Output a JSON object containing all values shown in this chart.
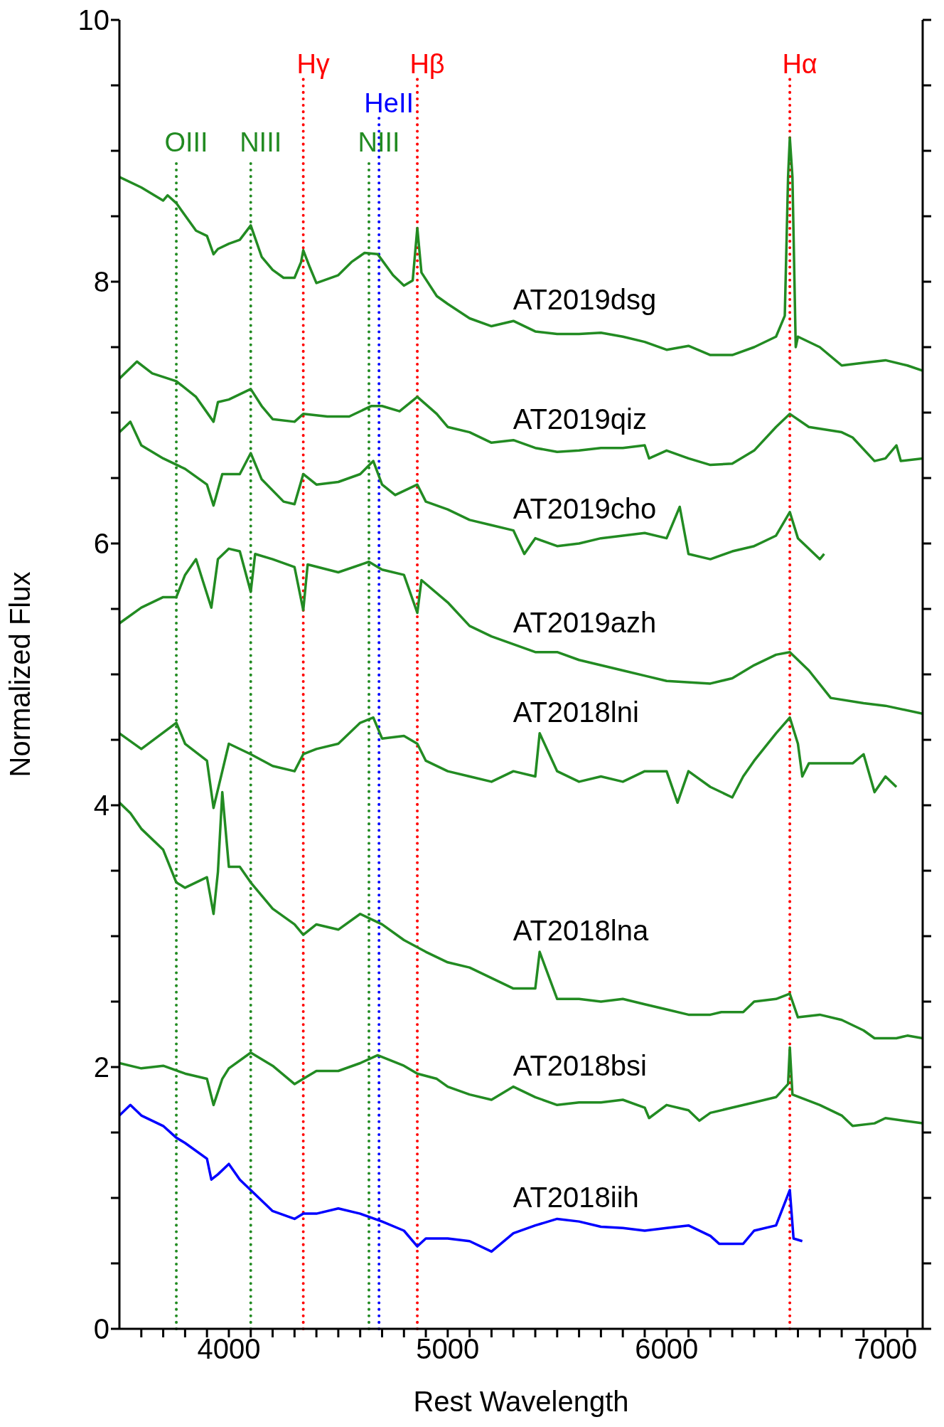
{
  "chart_data": {
    "type": "line",
    "xlabel": "Rest Wavelength",
    "ylabel": "Normalized Flux",
    "xlim": [
      3500,
      7170
    ],
    "ylim": [
      0,
      10
    ],
    "xticks": [
      {
        "value": 3600,
        "label": null
      },
      {
        "value": 3700,
        "label": null
      },
      {
        "value": 3800,
        "label": null
      },
      {
        "value": 3900,
        "label": null
      },
      4000,
      {
        "value": 4100,
        "label": null
      },
      {
        "value": 4200,
        "label": null
      },
      {
        "value": 4300,
        "label": null
      },
      {
        "value": 4400,
        "label": null
      },
      {
        "value": 4500,
        "label": null
      },
      {
        "value": 4600,
        "label": null
      },
      {
        "value": 4700,
        "label": null
      },
      {
        "value": 4800,
        "label": null
      },
      {
        "value": 4900,
        "label": null
      },
      5000,
      {
        "value": 5100,
        "label": null
      },
      {
        "value": 5200,
        "label": null
      },
      {
        "value": 5300,
        "label": null
      },
      {
        "value": 5400,
        "label": null
      },
      {
        "value": 5500,
        "label": null
      },
      {
        "value": 5600,
        "label": null
      },
      {
        "value": 5700,
        "label": null
      },
      {
        "value": 5800,
        "label": null
      },
      {
        "value": 5900,
        "label": null
      },
      6000,
      {
        "value": 6100,
        "label": null
      },
      {
        "value": 6200,
        "label": null
      },
      {
        "value": 6300,
        "label": null
      },
      {
        "value": 6400,
        "label": null
      },
      {
        "value": 6500,
        "label": null
      },
      {
        "value": 6600,
        "label": null
      },
      {
        "value": 6700,
        "label": null
      },
      {
        "value": 6800,
        "label": null
      },
      {
        "value": 6900,
        "label": null
      },
      7000,
      {
        "value": 7100,
        "label": null
      }
    ],
    "yticks": [
      0,
      {
        "value": 0.5,
        "label": null
      },
      {
        "value": 1,
        "label": null
      },
      {
        "value": 1.5,
        "label": null
      },
      2,
      {
        "value": 2.5,
        "label": null
      },
      {
        "value": 3,
        "label": null
      },
      {
        "value": 3.5,
        "label": null
      },
      4,
      {
        "value": 4.5,
        "label": null
      },
      {
        "value": 5,
        "label": null
      },
      {
        "value": 5.5,
        "label": null
      },
      6,
      {
        "value": 6.5,
        "label": null
      },
      {
        "value": 7,
        "label": null
      },
      {
        "value": 7.5,
        "label": null
      },
      8,
      {
        "value": 8.5,
        "label": null
      },
      {
        "value": 9,
        "label": null
      },
      {
        "value": 9.5,
        "label": null
      },
      10
    ],
    "ref_lines": [
      {
        "axis": "x",
        "value": 4340,
        "label": "Hγ",
        "color": "#ff0000",
        "line_style": "dotted"
      },
      {
        "axis": "x",
        "value": 4861,
        "label": "Hβ",
        "color": "#ff0000",
        "line_style": "dotted"
      },
      {
        "axis": "x",
        "value": 6563,
        "label": "Hα",
        "color": "#ff0000",
        "line_style": "dotted"
      },
      {
        "axis": "x",
        "value": 4686,
        "label": "HeII",
        "color": "#0000ff",
        "line_style": "dotted"
      },
      {
        "axis": "x",
        "value": 3760,
        "label": "OIII",
        "color": "#228b22",
        "line_style": "dotted"
      },
      {
        "axis": "x",
        "value": 4100,
        "label": "NIII",
        "color": "#228b22",
        "line_style": "dotted"
      },
      {
        "axis": "x",
        "value": 4640,
        "label": "NIII",
        "color": "#228b22",
        "line_style": "dotted"
      }
    ],
    "series": [
      {
        "name": "AT2019dsg",
        "color": "#228b22",
        "x": [
          3500,
          3600,
          3700,
          3720,
          3760,
          3850,
          3900,
          3930,
          3950,
          4000,
          4050,
          4100,
          4150,
          4200,
          4250,
          4300,
          4330,
          4340,
          4370,
          4400,
          4450,
          4500,
          4560,
          4620,
          4680,
          4750,
          4800,
          4840,
          4861,
          4880,
          4950,
          5000,
          5100,
          5200,
          5300,
          5400,
          5500,
          5600,
          5700,
          5800,
          5900,
          6000,
          6100,
          6200,
          6300,
          6400,
          6500,
          6540,
          6555,
          6563,
          6575,
          6590,
          6600,
          6700,
          6800,
          6900,
          7000,
          7100,
          7170
        ],
        "values": [
          8.8,
          8.72,
          8.62,
          8.66,
          8.6,
          8.39,
          8.35,
          8.21,
          8.25,
          8.29,
          8.32,
          8.43,
          8.19,
          8.09,
          8.03,
          8.03,
          8.15,
          8.24,
          8.11,
          7.99,
          8.02,
          8.05,
          8.15,
          8.22,
          8.21,
          8.05,
          7.97,
          8.01,
          8.41,
          8.07,
          7.89,
          7.83,
          7.72,
          7.66,
          7.7,
          7.62,
          7.6,
          7.6,
          7.61,
          7.58,
          7.54,
          7.48,
          7.51,
          7.44,
          7.44,
          7.5,
          7.58,
          7.74,
          8.8,
          9.1,
          8.8,
          7.5,
          7.58,
          7.5,
          7.36,
          7.38,
          7.4,
          7.36,
          7.32
        ]
      },
      {
        "name": "AT2019qiz",
        "color": "#228b22",
        "x": [
          3500,
          3580,
          3650,
          3760,
          3850,
          3930,
          3950,
          4000,
          4100,
          4150,
          4200,
          4300,
          4340,
          4450,
          4550,
          4650,
          4700,
          4780,
          4861,
          4950,
          5000,
          5100,
          5200,
          5300,
          5400,
          5500,
          5600,
          5700,
          5800,
          5900,
          5920,
          6000,
          6100,
          6200,
          6300,
          6400,
          6500,
          6563,
          6650,
          6800,
          6850,
          6950,
          7000,
          7050,
          7070,
          7170
        ],
        "values": [
          7.26,
          7.39,
          7.3,
          7.24,
          7.12,
          6.93,
          7.08,
          7.1,
          7.18,
          7.05,
          6.95,
          6.93,
          6.99,
          6.97,
          6.97,
          7.05,
          7.05,
          7.01,
          7.12,
          6.99,
          6.89,
          6.85,
          6.77,
          6.79,
          6.73,
          6.7,
          6.71,
          6.73,
          6.73,
          6.75,
          6.65,
          6.71,
          6.65,
          6.6,
          6.61,
          6.71,
          6.89,
          6.99,
          6.89,
          6.85,
          6.81,
          6.63,
          6.65,
          6.75,
          6.63,
          6.65
        ]
      },
      {
        "name": "AT2019cho",
        "color": "#228b22",
        "x": [
          3500,
          3550,
          3600,
          3700,
          3800,
          3900,
          3930,
          3970,
          4050,
          4100,
          4150,
          4250,
          4300,
          4340,
          4400,
          4500,
          4600,
          4660,
          4700,
          4760,
          4861,
          4900,
          5000,
          5100,
          5200,
          5300,
          5350,
          5400,
          5500,
          5600,
          5700,
          5800,
          5900,
          6000,
          6060,
          6100,
          6200,
          6300,
          6400,
          6500,
          6563,
          6600,
          6700,
          6720
        ],
        "values": [
          6.85,
          6.93,
          6.75,
          6.65,
          6.57,
          6.45,
          6.29,
          6.53,
          6.53,
          6.69,
          6.49,
          6.32,
          6.3,
          6.53,
          6.45,
          6.47,
          6.53,
          6.63,
          6.45,
          6.37,
          6.45,
          6.32,
          6.26,
          6.18,
          6.14,
          6.1,
          5.92,
          6.04,
          5.98,
          6.0,
          6.04,
          6.06,
          6.08,
          6.04,
          6.28,
          5.92,
          5.88,
          5.94,
          5.98,
          6.06,
          6.24,
          6.04,
          5.88,
          5.92
        ]
      },
      {
        "name": "AT2019azh",
        "color": "#228b22",
        "x": [
          3500,
          3600,
          3700,
          3760,
          3800,
          3850,
          3880,
          3920,
          3950,
          4000,
          4050,
          4100,
          4120,
          4200,
          4300,
          4340,
          4360,
          4500,
          4640,
          4700,
          4800,
          4861,
          4880,
          5000,
          5100,
          5200,
          5300,
          5400,
          5500,
          5600,
          5800,
          5900,
          6000,
          6200,
          6300,
          6400,
          6500,
          6563,
          6650,
          6750,
          6900,
          7000,
          7170
        ],
        "values": [
          5.39,
          5.51,
          5.59,
          5.59,
          5.76,
          5.88,
          5.72,
          5.51,
          5.88,
          5.96,
          5.94,
          5.63,
          5.92,
          5.88,
          5.82,
          5.49,
          5.84,
          5.78,
          5.86,
          5.8,
          5.76,
          5.47,
          5.72,
          5.55,
          5.37,
          5.29,
          5.23,
          5.17,
          5.17,
          5.11,
          5.03,
          4.99,
          4.95,
          4.93,
          4.97,
          5.07,
          5.15,
          5.17,
          5.03,
          4.82,
          4.78,
          4.76,
          4.7
        ]
      },
      {
        "name": "AT2018lni",
        "color": "#228b22",
        "x": [
          3500,
          3600,
          3760,
          3800,
          3900,
          3930,
          4000,
          4100,
          4200,
          4300,
          4340,
          4400,
          4500,
          4600,
          4660,
          4700,
          4800,
          4861,
          4900,
          5000,
          5100,
          5200,
          5300,
          5400,
          5420,
          5500,
          5600,
          5700,
          5800,
          5900,
          6000,
          6050,
          6100,
          6200,
          6300,
          6350,
          6400,
          6500,
          6563,
          6600,
          6620,
          6650,
          6850,
          6900,
          6950,
          7000,
          7050
        ],
        "values": [
          4.55,
          4.43,
          4.63,
          4.47,
          4.34,
          3.98,
          4.47,
          4.39,
          4.3,
          4.26,
          4.39,
          4.43,
          4.47,
          4.63,
          4.67,
          4.51,
          4.53,
          4.47,
          4.34,
          4.26,
          4.22,
          4.18,
          4.26,
          4.22,
          4.55,
          4.26,
          4.18,
          4.22,
          4.18,
          4.26,
          4.26,
          4.02,
          4.26,
          4.14,
          4.06,
          4.22,
          4.34,
          4.55,
          4.67,
          4.47,
          4.22,
          4.32,
          4.32,
          4.39,
          4.1,
          4.22,
          4.14
        ]
      },
      {
        "name": "AT2018lna",
        "color": "#228b22",
        "x": [
          3500,
          3550,
          3600,
          3700,
          3760,
          3800,
          3900,
          3930,
          3950,
          3970,
          4000,
          4050,
          4100,
          4200,
          4300,
          4340,
          4400,
          4500,
          4600,
          4650,
          4700,
          4800,
          4900,
          5000,
          5100,
          5200,
          5300,
          5400,
          5420,
          5500,
          5600,
          5700,
          5800,
          5900,
          6000,
          6100,
          6200,
          6250,
          6350,
          6400,
          6500,
          6563,
          6600,
          6700,
          6800,
          6900,
          6950,
          7050,
          7100,
          7170
        ],
        "values": [
          4.02,
          3.94,
          3.82,
          3.66,
          3.41,
          3.37,
          3.45,
          3.17,
          3.49,
          4.1,
          3.53,
          3.53,
          3.41,
          3.21,
          3.09,
          3.01,
          3.09,
          3.05,
          3.17,
          3.13,
          3.09,
          2.97,
          2.88,
          2.8,
          2.76,
          2.68,
          2.6,
          2.6,
          2.88,
          2.52,
          2.52,
          2.5,
          2.52,
          2.48,
          2.44,
          2.4,
          2.4,
          2.42,
          2.42,
          2.5,
          2.52,
          2.56,
          2.38,
          2.4,
          2.36,
          2.28,
          2.22,
          2.22,
          2.24,
          2.22
        ]
      },
      {
        "name": "AT2018bsi",
        "color": "#228b22",
        "x": [
          3500,
          3600,
          3700,
          3800,
          3900,
          3930,
          3970,
          4000,
          4100,
          4200,
          4300,
          4340,
          4400,
          4500,
          4600,
          4680,
          4800,
          4861,
          4950,
          5000,
          5100,
          5200,
          5300,
          5400,
          5500,
          5600,
          5700,
          5800,
          5900,
          5920,
          6000,
          6100,
          6150,
          6200,
          6300,
          6400,
          6500,
          6555,
          6563,
          6575,
          6700,
          6800,
          6850,
          6950,
          7000,
          7170
        ],
        "values": [
          2.03,
          1.99,
          2.01,
          1.95,
          1.91,
          1.71,
          1.91,
          1.99,
          2.11,
          2.01,
          1.87,
          1.91,
          1.97,
          1.97,
          2.03,
          2.09,
          2.01,
          1.95,
          1.91,
          1.85,
          1.79,
          1.75,
          1.85,
          1.77,
          1.71,
          1.73,
          1.73,
          1.75,
          1.69,
          1.61,
          1.71,
          1.67,
          1.59,
          1.65,
          1.69,
          1.73,
          1.77,
          1.87,
          2.15,
          1.79,
          1.71,
          1.63,
          1.55,
          1.57,
          1.61,
          1.57
        ]
      },
      {
        "name": "AT2018iih",
        "color": "#0000ff",
        "x": [
          3500,
          3550,
          3600,
          3700,
          3760,
          3800,
          3900,
          3920,
          3950,
          4000,
          4050,
          4100,
          4150,
          4200,
          4300,
          4340,
          4400,
          4500,
          4600,
          4700,
          4800,
          4861,
          4900,
          5000,
          5100,
          5200,
          5300,
          5400,
          5500,
          5600,
          5700,
          5800,
          5900,
          6000,
          6100,
          6200,
          6240,
          6350,
          6400,
          6500,
          6563,
          6580,
          6620
        ],
        "values": [
          1.63,
          1.71,
          1.63,
          1.55,
          1.46,
          1.42,
          1.3,
          1.14,
          1.18,
          1.26,
          1.14,
          1.06,
          0.98,
          0.9,
          0.84,
          0.88,
          0.88,
          0.92,
          0.88,
          0.82,
          0.75,
          0.63,
          0.69,
          0.69,
          0.67,
          0.59,
          0.73,
          0.79,
          0.84,
          0.82,
          0.78,
          0.77,
          0.75,
          0.77,
          0.79,
          0.71,
          0.65,
          0.65,
          0.75,
          0.79,
          1.06,
          0.69,
          0.67
        ]
      }
    ]
  }
}
